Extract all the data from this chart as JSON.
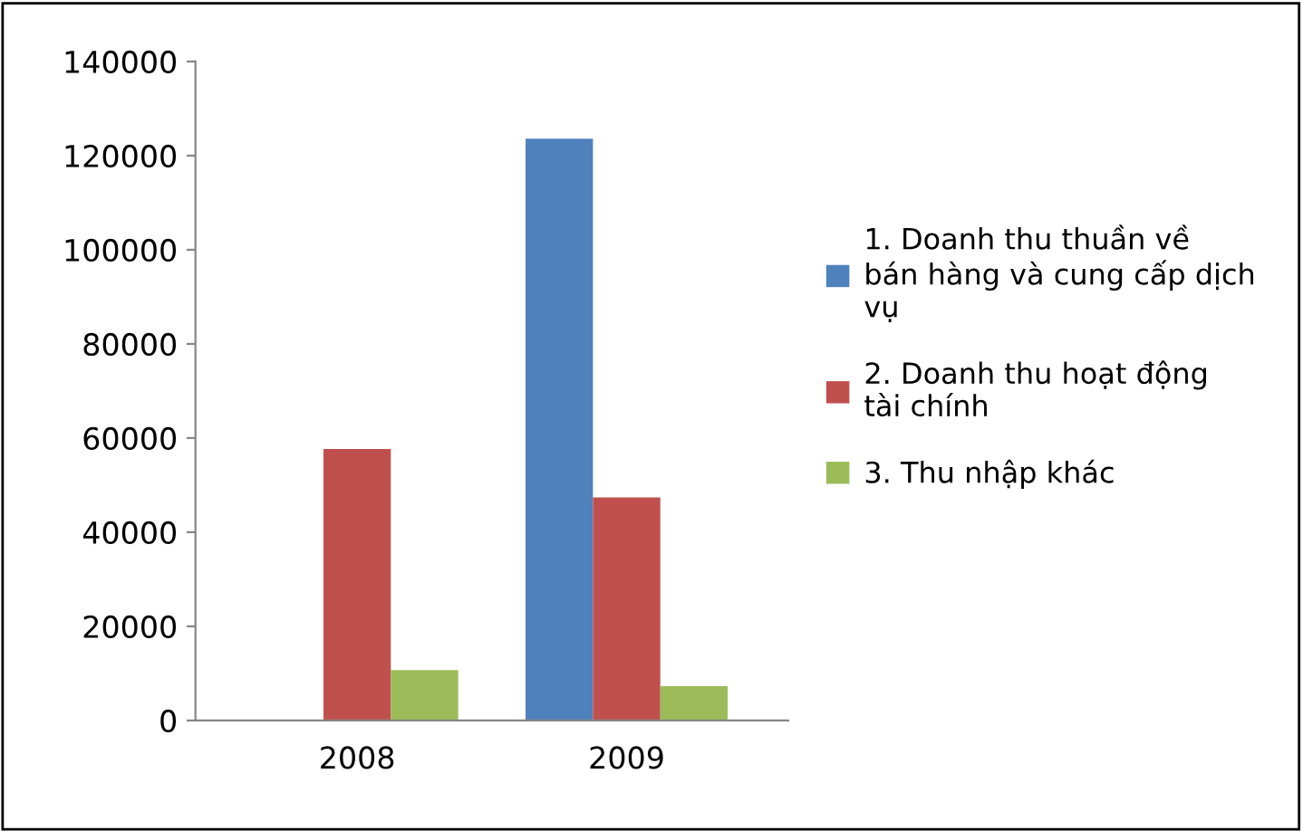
{
  "chart_data": {
    "type": "bar",
    "categories": [
      "2008",
      "2009"
    ],
    "series": [
      {
        "name": "1. Doanh thu thuần về\nbán hàng và cung cấp dịch\nvụ",
        "color": "#4f81bd",
        "values": [
          null,
          123600
        ]
      },
      {
        "name": "2. Doanh thu hoạt động\ntài chính",
        "color": "#c0504d",
        "values": [
          57700,
          47400
        ]
      },
      {
        "name": "3. Thu nhập khác",
        "color": "#9bbb59",
        "values": [
          10700,
          7300
        ]
      }
    ],
    "ylim": [
      0,
      140000
    ],
    "yticks": [
      0,
      20000,
      40000,
      60000,
      80000,
      100000,
      120000,
      140000
    ],
    "grid": false,
    "legend": "right"
  }
}
